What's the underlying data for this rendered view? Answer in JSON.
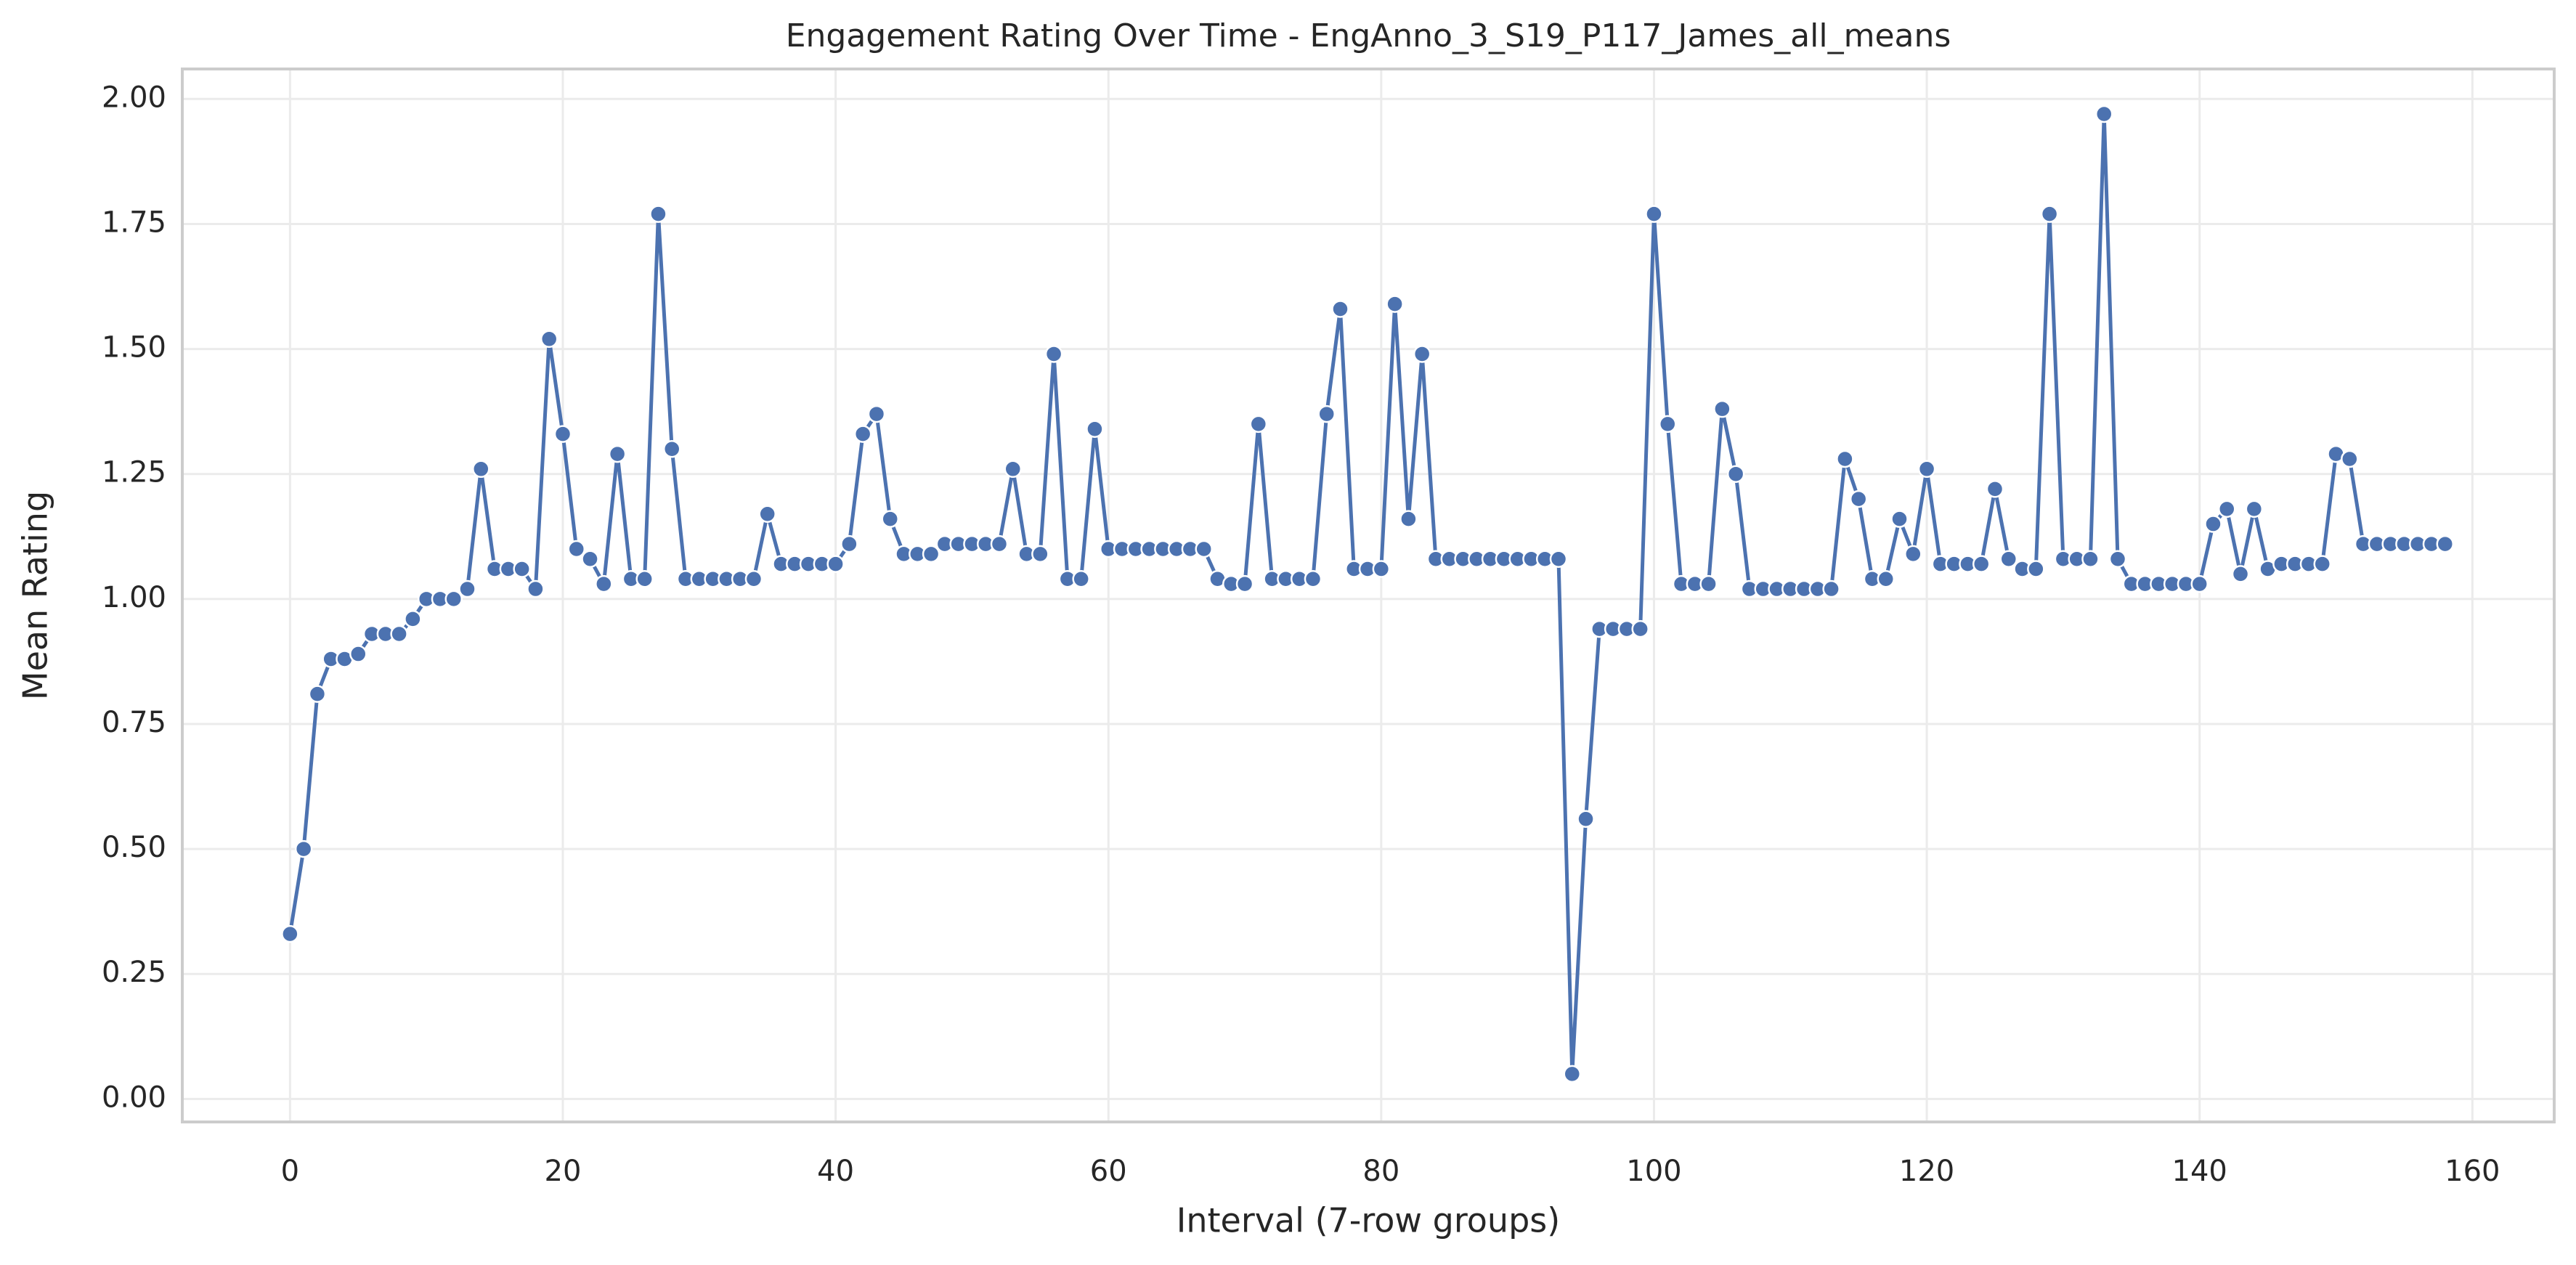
{
  "chart_data": {
    "type": "line",
    "title": "Engagement Rating Over Time -  EngAnno_3_S19_P117_James_all_means",
    "x_label": "Interval (7-row groups)",
    "y_label": "Mean Rating",
    "color": "#4c72b0",
    "grid": true,
    "markers": true,
    "x": [
      0,
      1,
      2,
      3,
      4,
      5,
      6,
      7,
      8,
      9,
      10,
      11,
      12,
      13,
      14,
      15,
      16,
      17,
      18,
      19,
      20,
      21,
      22,
      23,
      24,
      25,
      26,
      27,
      28,
      29,
      30,
      31,
      32,
      33,
      34,
      35,
      36,
      37,
      38,
      39,
      40,
      41,
      42,
      43,
      44,
      45,
      46,
      47,
      48,
      49,
      50,
      51,
      52,
      53,
      54,
      55,
      56,
      57,
      58,
      59,
      60,
      61,
      62,
      63,
      64,
      65,
      66,
      67,
      68,
      69,
      70,
      71,
      72,
      73,
      74,
      75,
      76,
      77,
      78,
      79,
      80,
      81,
      82,
      83,
      84,
      85,
      86,
      87,
      88,
      89,
      90,
      91,
      92,
      93,
      94,
      95,
      96,
      97,
      98,
      99,
      100,
      101,
      102,
      103,
      104,
      105,
      106,
      107,
      108,
      109,
      110,
      111,
      112,
      113,
      114,
      115,
      116,
      117,
      118,
      119,
      120,
      121,
      122,
      123,
      124,
      125,
      126,
      127,
      128,
      129,
      130,
      131,
      132,
      133,
      134,
      135,
      136,
      137,
      138,
      139,
      140,
      141,
      142,
      143,
      144,
      145,
      146,
      147,
      148,
      149,
      150,
      151,
      152,
      153,
      154,
      155,
      156,
      157,
      158
    ],
    "values": [
      0.33,
      0.5,
      0.81,
      0.88,
      0.88,
      0.89,
      0.93,
      0.93,
      0.93,
      0.96,
      1.0,
      1.0,
      1.0,
      1.02,
      1.26,
      1.06,
      1.06,
      1.06,
      1.02,
      1.52,
      1.33,
      1.1,
      1.08,
      1.03,
      1.29,
      1.04,
      1.04,
      1.77,
      1.3,
      1.04,
      1.04,
      1.04,
      1.04,
      1.04,
      1.04,
      1.17,
      1.07,
      1.07,
      1.07,
      1.07,
      1.07,
      1.11,
      1.33,
      1.37,
      1.16,
      1.09,
      1.09,
      1.09,
      1.11,
      1.11,
      1.11,
      1.11,
      1.11,
      1.26,
      1.09,
      1.09,
      1.49,
      1.04,
      1.04,
      1.34,
      1.1,
      1.1,
      1.1,
      1.1,
      1.1,
      1.1,
      1.1,
      1.1,
      1.04,
      1.03,
      1.03,
      1.35,
      1.04,
      1.04,
      1.04,
      1.04,
      1.37,
      1.58,
      1.06,
      1.06,
      1.06,
      1.59,
      1.16,
      1.49,
      1.08,
      1.08,
      1.08,
      1.08,
      1.08,
      1.08,
      1.08,
      1.08,
      1.08,
      1.08,
      0.05,
      0.56,
      0.94,
      0.94,
      0.94,
      0.94,
      1.77,
      1.35,
      1.03,
      1.03,
      1.03,
      1.38,
      1.25,
      1.02,
      1.02,
      1.02,
      1.02,
      1.02,
      1.02,
      1.02,
      1.28,
      1.2,
      1.04,
      1.04,
      1.16,
      1.09,
      1.26,
      1.07,
      1.07,
      1.07,
      1.07,
      1.22,
      1.08,
      1.06,
      1.06,
      1.77,
      1.08,
      1.08,
      1.08,
      1.97,
      1.08,
      1.03,
      1.03,
      1.03,
      1.03,
      1.03,
      1.03,
      1.15,
      1.18,
      1.05,
      1.18,
      1.06,
      1.07,
      1.07,
      1.07,
      1.07,
      1.29,
      1.28,
      1.11,
      1.11,
      1.11,
      1.11,
      1.11,
      1.11,
      1.11
    ],
    "xlim": [
      -7.9,
      166
    ],
    "ylim": [
      -0.046,
      2.06
    ],
    "xticks": [
      0,
      20,
      40,
      60,
      80,
      100,
      120,
      140,
      160
    ],
    "yticks": [
      {
        "value": 0,
        "label": "0.00"
      },
      {
        "value": 0.25,
        "label": "0.25"
      },
      {
        "value": 0.5,
        "label": "0.50"
      },
      {
        "value": 0.75,
        "label": "0.75"
      },
      {
        "value": 1,
        "label": "1.00"
      },
      {
        "value": 1.25,
        "label": "1.25"
      },
      {
        "value": 1.5,
        "label": "1.50"
      },
      {
        "value": 1.75,
        "label": "1.75"
      },
      {
        "value": 2,
        "label": "2.00"
      }
    ]
  }
}
